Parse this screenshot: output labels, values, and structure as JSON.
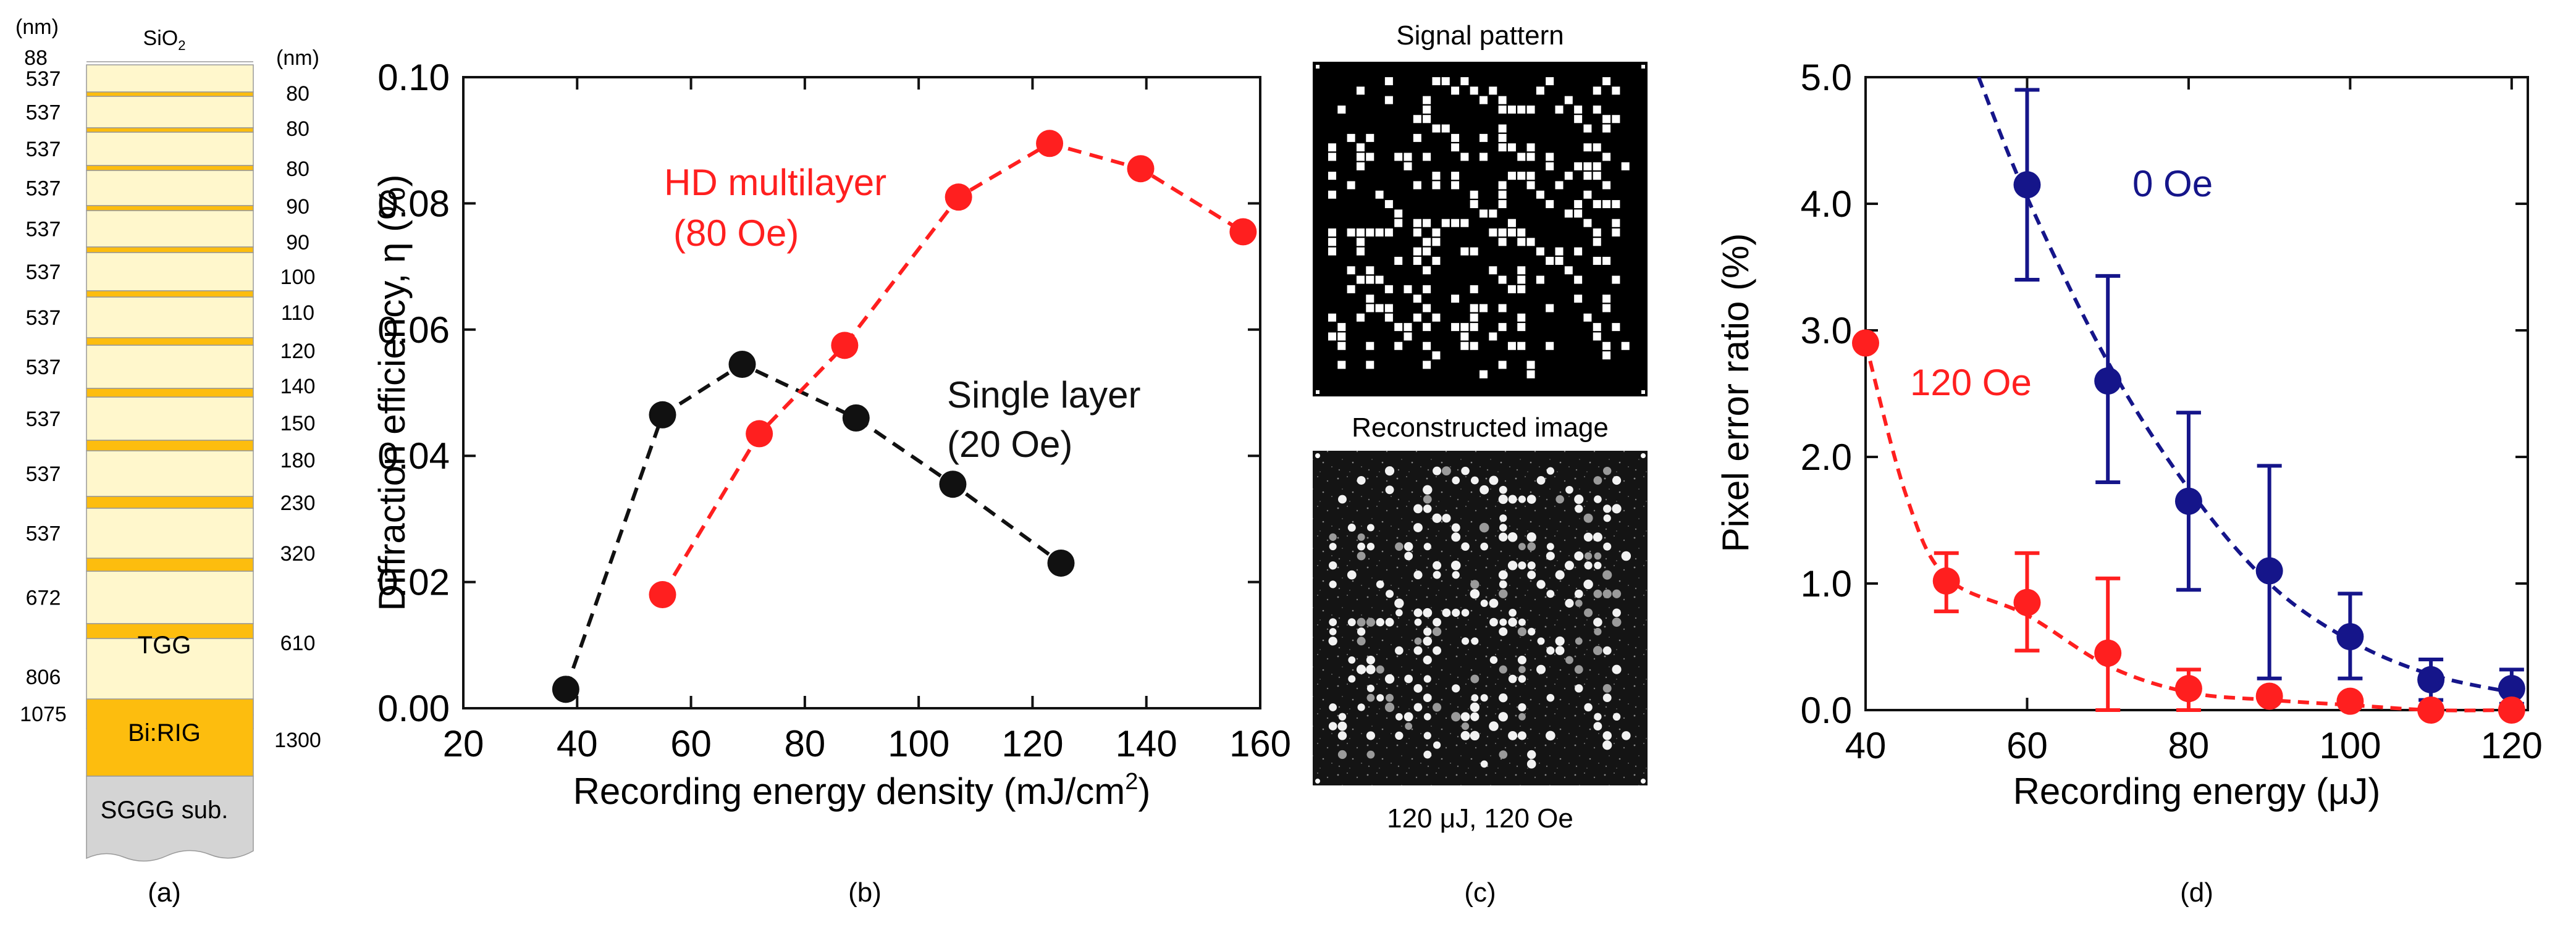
{
  "colors": {
    "black": "#111111",
    "red": "#ff1f1f",
    "blue": "#15158a",
    "tgg": "#fff7cc",
    "rig": "#fdbd0e",
    "sggg": "#d4d4d4"
  },
  "panel_a": {
    "caption": "(a)",
    "left_unit": "(nm)",
    "right_unit": "(nm)",
    "top_value": "88",
    "top_label": "SiO",
    "top_label_sub": "2",
    "tgg_label": "TGG",
    "rig_label": "Bi:RIG",
    "sggg_label": "SGGG sub.",
    "left_values": [
      "537",
      "537",
      "537",
      "537",
      "537",
      "537",
      "537",
      "537",
      "537",
      "537",
      "537",
      "672",
      "806",
      "1075"
    ],
    "right_values": [
      "80",
      "80",
      "80",
      "90",
      "90",
      "100",
      "110",
      "120",
      "140",
      "150",
      "180",
      "230",
      "320",
      "610",
      "1300"
    ]
  },
  "panel_c": {
    "caption": "(c)",
    "top_title": "Signal pattern",
    "bottom_title": "Reconstructed image",
    "footer": "120 μJ, 120 Oe"
  },
  "chart_data": [
    {
      "type": "scatter",
      "caption": "(b)",
      "title": "",
      "xlabel_main": "Recording energy density (mJ/cm",
      "xlabel_sup": "2",
      "xlabel_end": ")",
      "ylabel": "Diffraction efficiency, η (%)",
      "xlim": [
        20,
        160
      ],
      "ylim": [
        0,
        0.1
      ],
      "xticks": [
        20,
        40,
        60,
        80,
        100,
        120,
        140,
        160
      ],
      "xtick_labels": [
        "20",
        "40",
        "60",
        "80",
        "100",
        "120",
        "140",
        "160"
      ],
      "yticks": [
        0,
        0.02,
        0.04,
        0.06,
        0.08,
        0.1
      ],
      "ytick_labels": [
        "0.00",
        "0.02",
        "0.04",
        "0.06",
        "0.08",
        "0.10"
      ],
      "series": [
        {
          "name": "Single layer (20 Oe)",
          "label_line1": "Single layer",
          "label_line2": "(20 Oe)",
          "color": "#111111",
          "x": [
            38,
            55,
            69,
            89,
            106,
            125
          ],
          "y": [
            0.003,
            0.0465,
            0.0545,
            0.046,
            0.0355,
            0.023
          ]
        },
        {
          "name": "HD multilayer (80 Oe)",
          "label_line1": "HD multilayer",
          "label_line2": "(80 Oe)",
          "color": "#ff1f1f",
          "x": [
            55,
            72,
            87,
            107,
            123,
            139,
            157
          ],
          "y": [
            0.018,
            0.0435,
            0.0575,
            0.081,
            0.0895,
            0.0855,
            0.0755
          ]
        }
      ]
    },
    {
      "type": "scatter",
      "caption": "(d)",
      "title": "",
      "xlabel": "Recording energy (μJ)",
      "ylabel": "Pixel error ratio (%)",
      "xlim": [
        40,
        122
      ],
      "ylim": [
        0,
        5
      ],
      "xticks": [
        40,
        60,
        80,
        100,
        120
      ],
      "xtick_labels": [
        "40",
        "60",
        "80",
        "100",
        "120"
      ],
      "yticks": [
        0,
        1,
        2,
        3,
        4,
        5
      ],
      "ytick_labels": [
        "0.0",
        "1.0",
        "2.0",
        "3.0",
        "4.0",
        "5.0"
      ],
      "series": [
        {
          "name": "0 Oe",
          "color": "#15158a",
          "x": [
            60,
            70,
            80,
            90,
            100,
            110,
            120
          ],
          "y": [
            4.15,
            2.6,
            1.65,
            1.1,
            0.58,
            0.24,
            0.17
          ],
          "err_low": [
            3.4,
            1.8,
            0.95,
            0.25,
            0.25,
            0.08,
            0.05
          ],
          "err_high": [
            4.9,
            3.43,
            2.35,
            1.93,
            0.92,
            0.4,
            0.32
          ],
          "fit_x": [
            54,
            60,
            70,
            80,
            90,
            100,
            110,
            120
          ],
          "fit_y": [
            5.0,
            4.05,
            2.75,
            1.75,
            1.0,
            0.55,
            0.28,
            0.14
          ]
        },
        {
          "name": "120 Oe",
          "color": "#ff1f1f",
          "x": [
            40,
            50,
            60,
            70,
            80,
            90,
            100,
            110,
            120
          ],
          "y": [
            2.9,
            1.02,
            0.85,
            0.45,
            0.17,
            0.11,
            0.07,
            0.0,
            0.0
          ],
          "err_low": [
            null,
            0.78,
            0.47,
            0.0,
            0.0,
            null,
            null,
            null,
            null
          ],
          "err_high": [
            null,
            1.24,
            1.24,
            1.04,
            0.32,
            null,
            null,
            null,
            null
          ],
          "fit_x": [
            40,
            45,
            50,
            60,
            70,
            80,
            90,
            100,
            110,
            120
          ],
          "fit_y": [
            2.9,
            1.7,
            1.05,
            0.75,
            0.35,
            0.14,
            0.08,
            0.04,
            0.0,
            0.0
          ]
        }
      ]
    }
  ]
}
